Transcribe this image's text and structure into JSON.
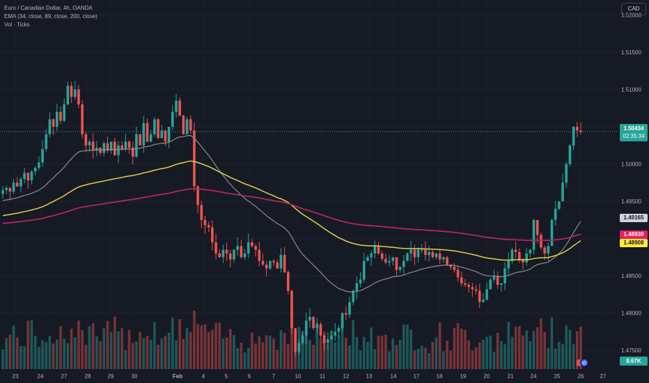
{
  "legend": {
    "symbol": "Euro / Canadian Dollar, 4h, OANDA",
    "ema": "EMA (34, close, 89, close, 200, close)",
    "volume": "Vol · Ticks"
  },
  "currency_button": "CAD",
  "price_ticks": [
    "1.52000",
    "1.51500",
    "1.51000",
    "1.50500",
    "1.50000",
    "1.49500",
    "1.49000",
    "1.48500",
    "1.48000",
    "1.47500"
  ],
  "time_ticks": [
    "23",
    "24",
    "27",
    "28",
    "29",
    "30",
    "Feb",
    "4",
    "5",
    "6",
    "7",
    "10",
    "11",
    "12",
    "13",
    "14",
    "17",
    "18",
    "19",
    "20",
    "21",
    "24",
    "25",
    "26",
    "27"
  ],
  "last_price": {
    "value": "1.50434",
    "countdown": "02:35:34",
    "color": "#26a69a"
  },
  "ema_tags": [
    {
      "value": "1.49165",
      "bg": "#d1d4dc",
      "fg": "#131722"
    },
    {
      "value": "1.48930",
      "bg": "#e91e63",
      "fg": "#ffffff"
    },
    {
      "value": "1.48908",
      "bg": "#ffeb3b",
      "fg": "#131722"
    }
  ],
  "volume_label": "8.67K",
  "colors": {
    "up": "#26a69a",
    "down": "#ef5350",
    "ema34": "#8e8f94",
    "ema89": "#e6d24a",
    "ema200": "#b8265a"
  },
  "chart_data": {
    "type": "candlestick",
    "symbol": "EURCAD",
    "timeframe": "4h",
    "y_range": [
      1.4725,
      1.522
    ],
    "candles_close": [
      1.4965,
      1.4968,
      1.4963,
      1.4975,
      1.497,
      1.498,
      1.4988,
      1.4978,
      1.499,
      1.4995,
      1.5002,
      1.502,
      1.504,
      1.506,
      1.505,
      1.507,
      1.5058,
      1.508,
      1.5105,
      1.509,
      1.51,
      1.508,
      1.504,
      1.5025,
      1.503,
      1.5018,
      1.5022,
      1.5015,
      1.5028,
      1.5018,
      1.503,
      1.5012,
      1.5025,
      1.502,
      1.503,
      1.5022,
      1.501,
      1.504,
      1.5025,
      1.5055,
      1.503,
      1.504,
      1.506,
      1.5035,
      1.5045,
      1.503,
      1.505,
      1.507,
      1.5085,
      1.5065,
      1.504,
      1.506,
      1.5045,
      1.497,
      1.4945,
      1.4925,
      1.4918,
      1.4915,
      1.4895,
      1.488,
      1.4875,
      1.4885,
      1.488,
      1.4872,
      1.4885,
      1.489,
      1.4875,
      1.488,
      1.4895,
      1.489,
      1.4885,
      1.487,
      1.4865,
      1.486,
      1.487,
      1.4868,
      1.486,
      1.4878,
      1.4855,
      1.483,
      1.478,
      1.4748,
      1.476,
      1.477,
      1.479,
      1.4795,
      1.478,
      1.4785,
      1.477,
      1.476,
      1.4765,
      1.477,
      1.4775,
      1.478,
      1.48,
      1.4798,
      1.4815,
      1.483,
      1.484,
      1.4845,
      1.487,
      1.4875,
      1.488,
      1.489,
      1.488,
      1.4873,
      1.4868,
      1.487,
      1.4875,
      1.4858,
      1.4862,
      1.487,
      1.488,
      1.4885,
      1.4875,
      1.4885,
      1.4885,
      1.4878,
      1.4882,
      1.4875,
      1.488,
      1.4872,
      1.4875,
      1.4865,
      1.4862,
      1.4858,
      1.4848,
      1.484,
      1.4838,
      1.4835,
      1.4832,
      1.483,
      1.4815,
      1.4818,
      1.4832,
      1.4845,
      1.485,
      1.4838,
      1.484,
      1.486,
      1.487,
      1.4885,
      1.4882,
      1.4872,
      1.4868,
      1.488,
      1.4885,
      1.4925,
      1.4905,
      1.4888,
      1.488,
      1.489,
      1.4925,
      1.494,
      1.495,
      1.4975,
      1.5,
      1.5025,
      1.505,
      1.5045,
      1.5043
    ],
    "ema34_last": 1.49165,
    "ema89_last": 1.48908,
    "ema200_last": 1.4893,
    "last_price": 1.50434,
    "volume_last": "8.67K"
  }
}
